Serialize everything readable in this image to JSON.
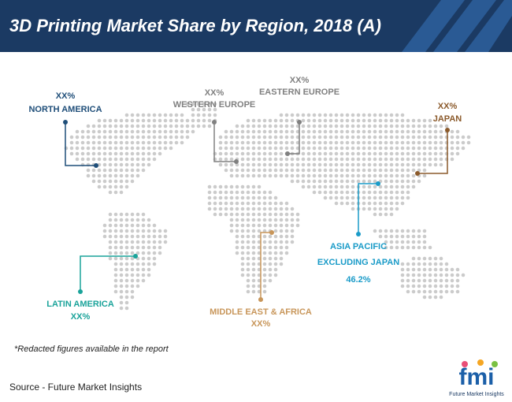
{
  "header": {
    "title": "3D Printing Market Share by Region, 2018 (A)"
  },
  "regions": [
    {
      "name": "NORTH AMERICA",
      "value": "XX%"
    },
    {
      "name": "WESTERN EUROPE",
      "value": "XX%"
    },
    {
      "name": "EASTERN EUROPE",
      "value": "XX%"
    },
    {
      "name": "JAPAN",
      "value": "XX%"
    },
    {
      "name": [
        "ASIA PACIFIC",
        "EXCLUDING JAPAN"
      ],
      "value": "46.2%"
    },
    {
      "name": "LATIN AMERICA",
      "value": "XX%"
    },
    {
      "name": "MIDDLE EAST & AFRICA",
      "value": "XX%"
    }
  ],
  "note": "*Redacted figures available in the report",
  "source": "Source - Future Market Insights",
  "logo": {
    "text": "fmi",
    "subtitle": "Future Market Insights"
  }
}
